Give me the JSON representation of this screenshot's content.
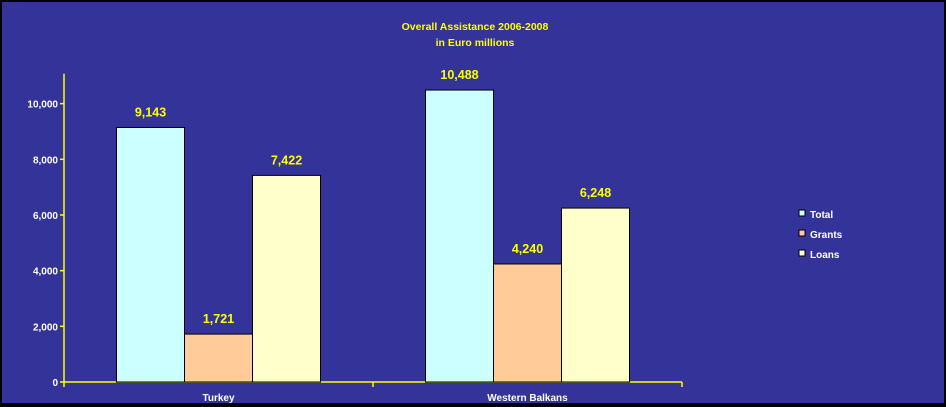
{
  "chart_data": {
    "type": "bar",
    "title": "Overall Assistance 2006-2008",
    "subtitle": "in Euro millions",
    "categories": [
      "Turkey",
      "Western Balkans"
    ],
    "series": [
      {
        "name": "Total",
        "color": "#ccffff",
        "values": [
          9143,
          10488
        ],
        "labels": [
          "9,143",
          "10,488"
        ]
      },
      {
        "name": "Grants",
        "color": "#ffcc99",
        "values": [
          1721,
          4240
        ],
        "labels": [
          "1,721",
          "4,240"
        ]
      },
      {
        "name": "Loans",
        "color": "#ffffcc",
        "values": [
          7422,
          6248
        ],
        "labels": [
          "7,422",
          "6,248"
        ]
      }
    ],
    "yticks": [
      0,
      2000,
      4000,
      6000,
      8000,
      10000
    ],
    "ytick_labels": [
      "0",
      "2,000",
      "4,000",
      "6,000",
      "8,000",
      "10,000"
    ],
    "ylim": [
      0,
      11000
    ],
    "xlabel": "",
    "ylabel": "",
    "grid": false,
    "legend_position": "right",
    "colors": {
      "background": "#333399",
      "axis": "#ffff00",
      "title": "#ffff00",
      "data_labels": "#ffff00",
      "tick_labels": "#ffffff",
      "bar_outline": "#000000"
    }
  }
}
